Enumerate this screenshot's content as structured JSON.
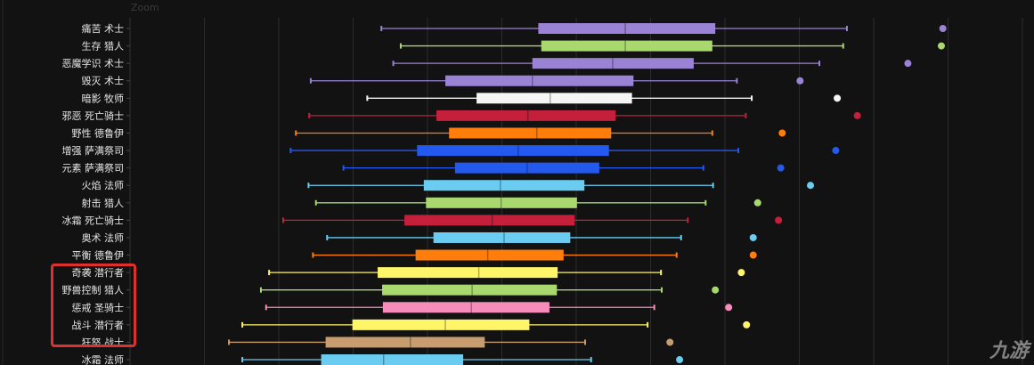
{
  "toolbar": {
    "zoom_label": "Zoom"
  },
  "watermark": "九游",
  "highlight_note": "",
  "chart_data": {
    "type": "boxplot",
    "orientation": "horizontal",
    "grid": true,
    "xlim": [
      0,
      12.2
    ],
    "categories": [
      "痛苦 术士",
      "生存 猎人",
      "恶魔学识 术士",
      "毁灭 术士",
      "暗影 牧师",
      "邪恶 死亡骑士",
      "野性 德鲁伊",
      "增强 萨满祭司",
      "元素 萨满祭司",
      "火焰 法师",
      "射击 猎人",
      "冰霜 死亡骑士",
      "奥术 法师",
      "平衡 德鲁伊",
      "奇袭 潜行者",
      "野兽控制 猎人",
      "惩戒 圣骑士",
      "战斗 潜行者",
      "狂怒 战士",
      "冰霜 法师"
    ],
    "boxes": [
      {
        "min": 3.38,
        "q1": 5.49,
        "median": 6.66,
        "q3": 7.87,
        "max": 9.64,
        "outlier": 10.93,
        "color": "#9a82d4"
      },
      {
        "min": 3.64,
        "q1": 5.53,
        "median": 6.66,
        "q3": 7.83,
        "max": 9.59,
        "outlier": 10.91,
        "color": "#a8d86e"
      },
      {
        "min": 3.54,
        "q1": 5.41,
        "median": 6.49,
        "q3": 7.58,
        "max": 9.27,
        "outlier": 10.46,
        "color": "#9a82d4"
      },
      {
        "min": 2.43,
        "q1": 4.24,
        "median": 5.41,
        "q3": 6.77,
        "max": 8.16,
        "outlier": 9.01,
        "color": "#9a82d4"
      },
      {
        "min": 3.19,
        "q1": 4.66,
        "median": 5.65,
        "q3": 6.75,
        "max": 8.36,
        "outlier": 9.51,
        "color": "#f5f5f5"
      },
      {
        "min": 2.41,
        "q1": 4.12,
        "median": 5.35,
        "q3": 6.53,
        "max": 8.28,
        "outlier": 9.78,
        "color": "#c41f3b"
      },
      {
        "min": 2.23,
        "q1": 4.29,
        "median": 5.47,
        "q3": 6.47,
        "max": 7.83,
        "outlier": 8.77,
        "color": "#ff7d0a"
      },
      {
        "min": 2.16,
        "q1": 3.86,
        "median": 5.22,
        "q3": 6.44,
        "max": 8.18,
        "outlier": 9.49,
        "color": "#2459f0"
      },
      {
        "min": 2.87,
        "q1": 4.37,
        "median": 5.34,
        "q3": 6.31,
        "max": 7.71,
        "outlier": 8.75,
        "color": "#2459f0"
      },
      {
        "min": 2.4,
        "q1": 3.95,
        "median": 4.98,
        "q3": 6.11,
        "max": 7.84,
        "outlier": 9.15,
        "color": "#69ccf0"
      },
      {
        "min": 2.5,
        "q1": 3.98,
        "median": 4.99,
        "q3": 6.01,
        "max": 7.74,
        "outlier": 8.44,
        "color": "#a8d86e"
      },
      {
        "min": 2.06,
        "q1": 3.69,
        "median": 4.87,
        "q3": 5.98,
        "max": 7.5,
        "outlier": 8.72,
        "color": "#c41f3b"
      },
      {
        "min": 2.65,
        "q1": 4.08,
        "median": 5.03,
        "q3": 5.92,
        "max": 7.41,
        "outlier": 8.38,
        "color": "#69ccf0"
      },
      {
        "min": 2.46,
        "q1": 3.84,
        "median": 4.81,
        "q3": 5.83,
        "max": 7.35,
        "outlier": 8.38,
        "color": "#ff7d0a"
      },
      {
        "min": 1.87,
        "q1": 3.33,
        "median": 4.69,
        "q3": 5.75,
        "max": 7.14,
        "outlier": 8.22,
        "color": "#fff569"
      },
      {
        "min": 1.76,
        "q1": 3.39,
        "median": 4.6,
        "q3": 5.74,
        "max": 7.15,
        "outlier": 7.87,
        "color": "#a8d86e"
      },
      {
        "min": 1.83,
        "q1": 3.4,
        "median": 4.59,
        "q3": 5.64,
        "max": 7.05,
        "outlier": 8.05,
        "color": "#f58cba"
      },
      {
        "min": 1.51,
        "q1": 2.99,
        "median": 4.24,
        "q3": 5.37,
        "max": 6.96,
        "outlier": 8.29,
        "color": "#fff569"
      },
      {
        "min": 1.33,
        "q1": 2.63,
        "median": 3.77,
        "q3": 4.77,
        "max": 6.12,
        "outlier": 7.26,
        "color": "#c79c6e"
      },
      {
        "min": 1.51,
        "q1": 2.57,
        "median": 3.41,
        "q3": 4.48,
        "max": 6.2,
        "outlier": 7.39,
        "color": "#69ccf0"
      }
    ],
    "highlighted_categories": [
      "奇袭 潜行者",
      "野兽控制 猎人",
      "惩戒 圣骑士",
      "战斗 潜行者",
      "狂怒 战士"
    ],
    "highlight_color": "#e0302c"
  }
}
